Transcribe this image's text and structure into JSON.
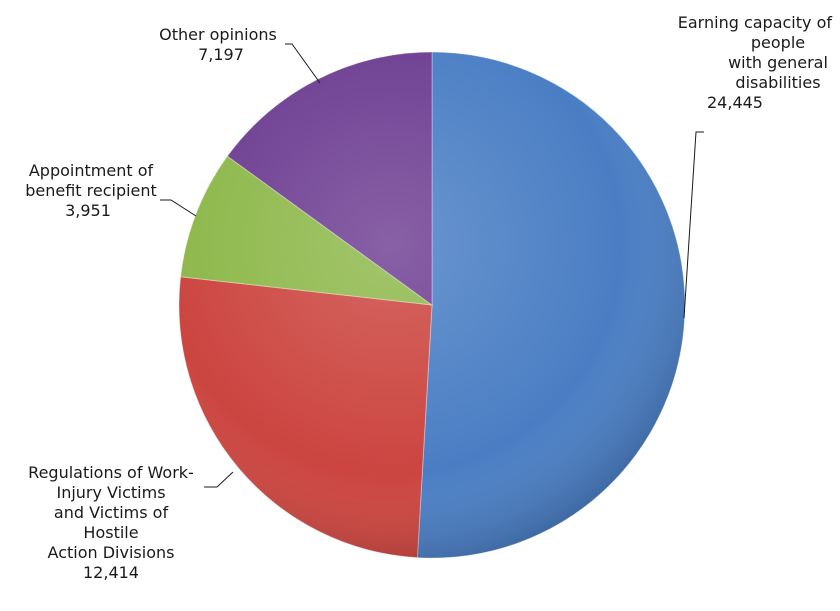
{
  "chart_data": {
    "type": "pie",
    "title": "",
    "slices": [
      {
        "label_lines": [
          "Earning capacity of",
          "people",
          "with general",
          "disabilities"
        ],
        "value": 24445,
        "value_label": "24,445",
        "color": "#4A7EC4"
      },
      {
        "label_lines": [
          "Regulations of Work-",
          "Injury Victims",
          "and Victims of",
          "Hostile",
          "Action Divisions"
        ],
        "value": 12414,
        "value_label": "12,414",
        "color": "#CC4540"
      },
      {
        "label_lines": [
          "Appointment of",
          "benefit recipient"
        ],
        "value": 3951,
        "value_label": "3,951",
        "color": "#8DB84A"
      },
      {
        "label_lines": [
          "Other opinions"
        ],
        "value": 7197,
        "value_label": "7,197",
        "color": "#6E3E92"
      }
    ],
    "start_angle": "12 o'clock",
    "direction": "clockwise",
    "legend": "none",
    "data_labels": "outside with leader lines"
  }
}
